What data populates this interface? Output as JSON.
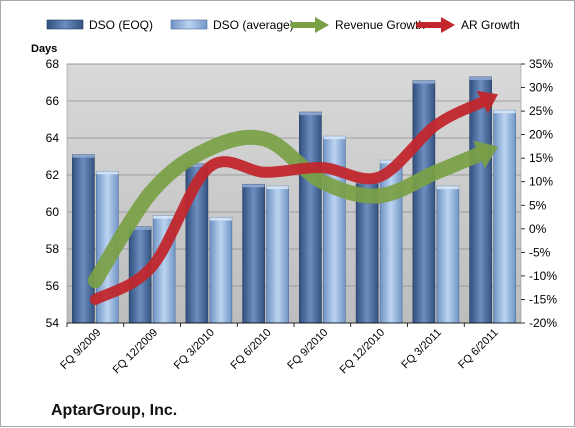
{
  "company_name": "AptarGroup, Inc.",
  "chart_data": {
    "type": "bar",
    "categories": [
      "FQ 9/2009",
      "FQ 12/2009",
      "FQ 3/2010",
      "FQ 6/2010",
      "FQ 9/2010",
      "FQ 12/2010",
      "FQ 3/2011",
      "FQ 6/2011"
    ],
    "ylabel": "Days",
    "ylim": [
      54,
      68
    ],
    "yticks": [
      54,
      56,
      58,
      60,
      62,
      64,
      66,
      68
    ],
    "y2lim": [
      -20,
      35
    ],
    "y2ticks": [
      "-20%",
      "-15%",
      "-10%",
      "-5%",
      "0%",
      "5%",
      "10%",
      "15%",
      "20%",
      "25%",
      "30%",
      "35%"
    ],
    "series": [
      {
        "name": "DSO (EOQ)",
        "axis": "left",
        "type": "bar",
        "color": "#4a6a9a",
        "values": [
          63.1,
          59.2,
          62.6,
          61.5,
          65.4,
          61.7,
          67.1,
          67.3
        ]
      },
      {
        "name": "DSO (average)",
        "axis": "left",
        "type": "bar",
        "color": "#8fb0dc",
        "values": [
          62.2,
          59.8,
          59.7,
          61.4,
          64.1,
          62.8,
          61.4,
          65.5
        ]
      },
      {
        "name": "Revenue Growth",
        "axis": "right",
        "type": "line",
        "color": "#7a9f45",
        "values": [
          -11,
          8,
          17,
          19,
          10,
          7,
          12,
          17
        ]
      },
      {
        "name": "AR Growth",
        "axis": "right",
        "type": "line",
        "color": "#c1272d",
        "values": [
          -15,
          -8,
          13,
          12,
          13,
          11,
          22,
          28
        ]
      }
    ],
    "legend_position": "top",
    "grid": true
  }
}
